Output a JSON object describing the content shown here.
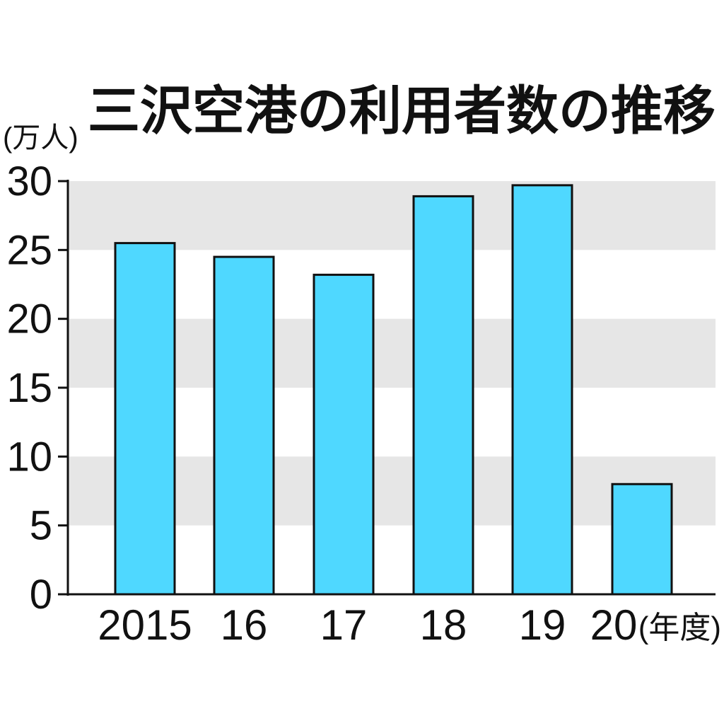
{
  "chart_data": {
    "type": "bar",
    "title": "三沢空港の利用者数の推移",
    "y_unit_label": "(万人)",
    "x_unit_label": "(年度)",
    "categories": [
      "2015",
      "16",
      "17",
      "18",
      "19",
      "20"
    ],
    "values": [
      25.5,
      24.5,
      23.2,
      28.9,
      29.7,
      8.0
    ],
    "ylim": [
      0,
      30
    ],
    "yticks": [
      "0",
      "5",
      "10",
      "15",
      "20",
      "25",
      "30"
    ],
    "grid": "alternating gray bands",
    "colors": {
      "bar_fill": "#4fd8ff",
      "bar_stroke": "#111111",
      "band": "#e6e6e6",
      "axis": "#111111"
    }
  }
}
